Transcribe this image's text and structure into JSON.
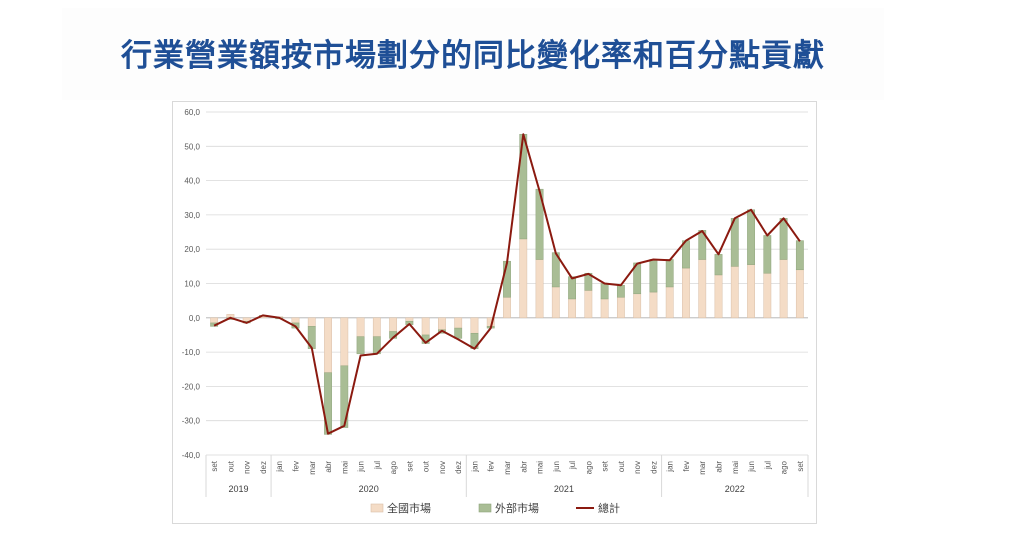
{
  "title": "行業營業額按市場劃分的同比變化率和百分點貢獻",
  "colors": {
    "domestic": "#f4dcc6",
    "domestic_stroke": "#d9bfa8",
    "external": "#a9bd95",
    "external_stroke": "#8fa47c",
    "total": "#8b1a10",
    "title": "#1f4f96"
  },
  "chart_data": {
    "type": "bar",
    "stacked": true,
    "categories": [
      "set",
      "out",
      "nov",
      "dez",
      "jan",
      "fev",
      "mar",
      "abr",
      "mai",
      "jun",
      "jul",
      "ago",
      "set",
      "out",
      "nov",
      "dez",
      "jan",
      "fev",
      "mar",
      "abr",
      "mai",
      "jun",
      "jul",
      "ago",
      "set",
      "out",
      "nov",
      "dez",
      "jan",
      "fev",
      "mar",
      "abr",
      "mai",
      "jun",
      "jul",
      "ago",
      "set"
    ],
    "years": [
      {
        "label": "2019",
        "start": 0,
        "end": 3
      },
      {
        "label": "2020",
        "start": 4,
        "end": 15
      },
      {
        "label": "2021",
        "start": 16,
        "end": 27
      },
      {
        "label": "2022",
        "start": 28,
        "end": 36
      }
    ],
    "series": [
      {
        "name": "全國市場",
        "kind": "bar",
        "values": [
          -1.5,
          1.0,
          -1.0,
          0.5,
          0.3,
          -1.5,
          -2.5,
          -16.0,
          -14.0,
          -5.5,
          -5.5,
          -4.0,
          -1.0,
          -5.0,
          -3.5,
          -3.0,
          -4.5,
          -2.5,
          6.0,
          23.0,
          17.0,
          9.0,
          5.5,
          8.0,
          5.5,
          6.0,
          7.0,
          7.5,
          9.0,
          14.5,
          17.0,
          12.5,
          15.0,
          15.5,
          13.0,
          17.0,
          14.0
        ]
      },
      {
        "name": "外部市場",
        "kind": "bar",
        "values": [
          -1.0,
          -0.5,
          -0.5,
          0.2,
          -0.3,
          -1.5,
          -6.5,
          -18.0,
          -18.0,
          -5.0,
          -5.0,
          -2.0,
          -1.0,
          -2.5,
          -1.0,
          -3.0,
          -4.5,
          -0.5,
          10.5,
          30.5,
          20.5,
          10.0,
          6.5,
          5.0,
          4.5,
          3.5,
          9.0,
          9.5,
          8.0,
          8.0,
          8.5,
          6.0,
          14.0,
          16.0,
          11.0,
          12.0,
          8.5
        ]
      },
      {
        "name": "總計",
        "kind": "line",
        "values": [
          -2.3,
          0.0,
          -1.5,
          0.7,
          0.0,
          -2.5,
          -8.8,
          -33.8,
          -31.5,
          -11.0,
          -10.5,
          -5.8,
          -1.8,
          -7.3,
          -3.8,
          -6.3,
          -9.0,
          -3.0,
          16.0,
          53.5,
          37.0,
          18.8,
          11.5,
          12.8,
          10.0,
          9.5,
          15.8,
          17.0,
          16.8,
          22.5,
          25.3,
          18.5,
          29.0,
          31.5,
          24.0,
          29.0,
          22.3
        ]
      }
    ],
    "ylim": [
      -40,
      60
    ],
    "yticks": [
      "-40,0",
      "-30,0",
      "-20,0",
      "-10,0",
      "0,0",
      "10,0",
      "20,0",
      "30,0",
      "40,0",
      "50,0",
      "60,0"
    ],
    "grid": true,
    "legend_position": "bottom"
  }
}
